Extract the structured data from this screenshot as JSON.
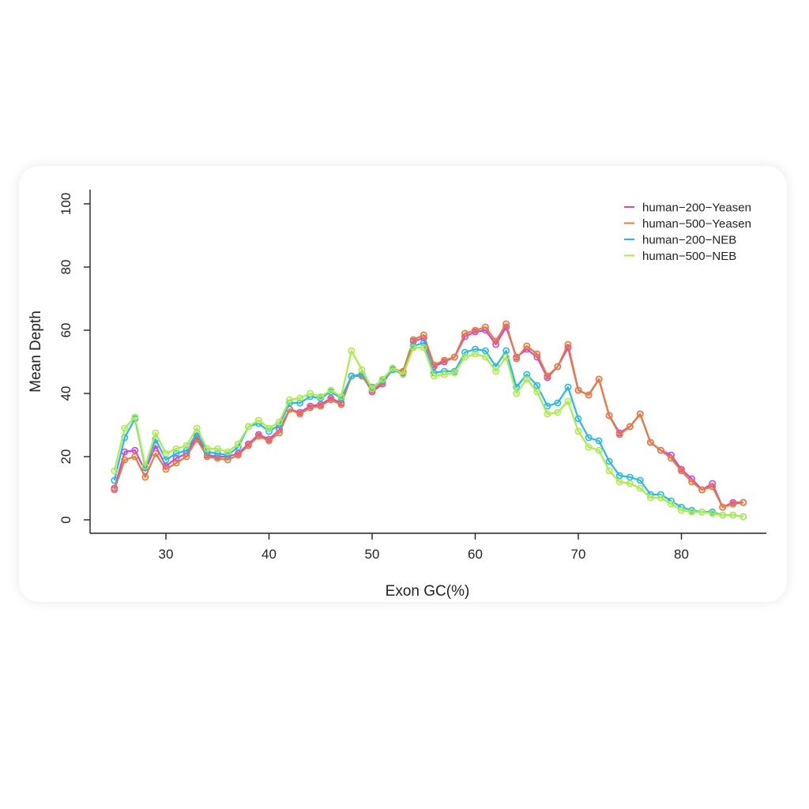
{
  "chart_data": {
    "type": "line",
    "title": "",
    "xlabel": "Exon GC(%)",
    "ylabel": "Mean Depth",
    "xlim": [
      25,
      86
    ],
    "ylim": [
      0,
      100
    ],
    "xticks": [
      30,
      40,
      50,
      60,
      70,
      80
    ],
    "yticks": [
      0,
      20,
      40,
      60,
      80,
      100
    ],
    "grid": false,
    "legend_position": "top-right",
    "markers": "open-circle",
    "x": [
      25,
      26,
      27,
      28,
      29,
      30,
      31,
      32,
      33,
      34,
      35,
      36,
      37,
      38,
      39,
      40,
      41,
      42,
      43,
      44,
      45,
      46,
      47,
      48,
      49,
      50,
      51,
      52,
      53,
      54,
      55,
      56,
      57,
      58,
      59,
      60,
      61,
      62,
      63,
      64,
      65,
      66,
      67,
      68,
      69,
      70,
      71,
      72,
      73,
      74,
      75,
      76,
      77,
      78,
      79,
      80,
      81,
      82,
      83,
      84,
      85,
      86
    ],
    "series": [
      {
        "name": "human−200−Yeasen",
        "color": "#cc44ee",
        "values": [
          10,
          21.5,
          22,
          15.5,
          23.5,
          17,
          19.5,
          21,
          26.5,
          20.5,
          20,
          20,
          21,
          24,
          27,
          25.5,
          28.5,
          35,
          34,
          36,
          36.5,
          38.5,
          37,
          45.5,
          46,
          40.5,
          43,
          48,
          46.5,
          56.5,
          57.5,
          48.5,
          50,
          51.5,
          58,
          59.5,
          60,
          55.5,
          61,
          51.5,
          54,
          51.5,
          45,
          48.5,
          54.5,
          41,
          39.5,
          44.5,
          33,
          27.5,
          29.5,
          33.5,
          24.5,
          22,
          20.5,
          16,
          13,
          9.5,
          11.5,
          4,
          5.5,
          5.5
        ]
      },
      {
        "name": "human−500−Yeasen",
        "color": "#ee7733",
        "values": [
          9.5,
          19,
          20,
          13.5,
          21,
          16,
          18,
          20,
          25.5,
          20,
          19.5,
          19,
          20.5,
          23.5,
          26.5,
          25,
          27.5,
          35,
          33.5,
          35.5,
          36,
          38,
          36.5,
          45.5,
          45.5,
          41,
          43.5,
          47.5,
          47,
          57,
          58.5,
          49,
          50.5,
          51.5,
          59,
          60,
          61,
          56.5,
          62,
          51,
          55,
          52.5,
          45.5,
          48.5,
          55.5,
          41,
          39.5,
          44.5,
          33,
          27,
          29.5,
          33.5,
          24.5,
          22,
          19.5,
          15.5,
          12,
          9.5,
          10.5,
          4,
          5,
          5.5
        ]
      },
      {
        "name": "human−200−NEB",
        "color": "#22bbee",
        "values": [
          12.5,
          26,
          32,
          16.5,
          25.5,
          19,
          21,
          22,
          27.5,
          21.5,
          21,
          20.5,
          23,
          29.5,
          30.5,
          28,
          30,
          37,
          37,
          39,
          38.5,
          40.5,
          38.5,
          45.5,
          46,
          42,
          44,
          47.5,
          46,
          55,
          56,
          46.5,
          47,
          47,
          53,
          54,
          53.5,
          48.5,
          53.5,
          42,
          46,
          42.5,
          36,
          37,
          42,
          32,
          26,
          25,
          18.5,
          14,
          13.5,
          12.5,
          8,
          8,
          6,
          4,
          3,
          2.5,
          2.5,
          1.5,
          1.5,
          1
        ]
      },
      {
        "name": "human−500−NEB",
        "color": "#aaee44",
        "values": [
          15.5,
          29,
          32.5,
          17,
          27.5,
          21,
          22.5,
          23.5,
          29,
          22.5,
          22.5,
          21.5,
          24,
          29.5,
          31.5,
          29,
          31,
          38,
          38.5,
          40,
          39,
          41,
          39,
          53.5,
          47.5,
          41.5,
          44.5,
          48,
          46,
          54.5,
          54.5,
          45.5,
          46,
          46.5,
          51.5,
          52.5,
          51.5,
          47,
          51.5,
          40,
          44.5,
          40.5,
          33.5,
          34,
          37.5,
          28,
          23,
          22,
          15.5,
          12,
          11.5,
          10,
          7,
          7,
          5,
          3,
          2.5,
          2.5,
          2,
          1.5,
          1.5,
          1
        ]
      }
    ]
  }
}
